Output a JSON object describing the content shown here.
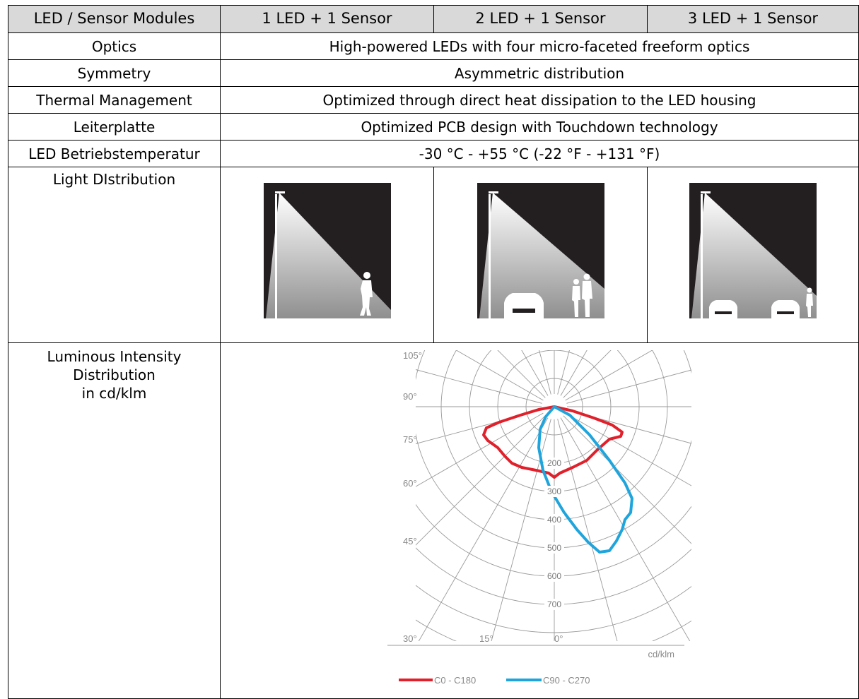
{
  "header": {
    "col0": "LED / Sensor Modules",
    "col1": "1 LED + 1 Sensor",
    "col2": "2 LED + 1 Sensor",
    "col3": "3 LED + 1 Sensor"
  },
  "rows": {
    "optics": {
      "label": "Optics",
      "value": "High-powered LEDs with four micro-faceted freeform optics"
    },
    "symmetry": {
      "label": "Symmetry",
      "value": "Asymmetric distribution"
    },
    "thermal": {
      "label": "Thermal Management",
      "value": "Optimized through direct heat dissipation to the LED housing"
    },
    "pcb": {
      "label": "Leiterplatte",
      "value": "Optimized PCB design with Touchdown technology"
    },
    "temp": {
      "label": "LED Betriebstemperatur",
      "value": "-30 °C - +55 °C (-22 °F - +131 °F)"
    },
    "light": {
      "label": "Light DIstribution"
    },
    "intensity": {
      "label_line1": "Luminous Intensity",
      "label_line2": "Distribution",
      "label_line3": "in cd/klm"
    }
  },
  "chart_data": {
    "type": "polar",
    "unit": "cd/klm",
    "radial_ticks": [
      "200",
      "300",
      "400",
      "500",
      "600",
      "700"
    ],
    "angle_ticks": [
      "105°",
      "90°",
      "75°",
      "60°",
      "45°",
      "30°",
      "15°",
      "0°"
    ],
    "legend": [
      {
        "name": "C0 - C180",
        "color": "#e0202a"
      },
      {
        "name": "C90 - C270",
        "color": "#1fa5dc"
      }
    ]
  }
}
